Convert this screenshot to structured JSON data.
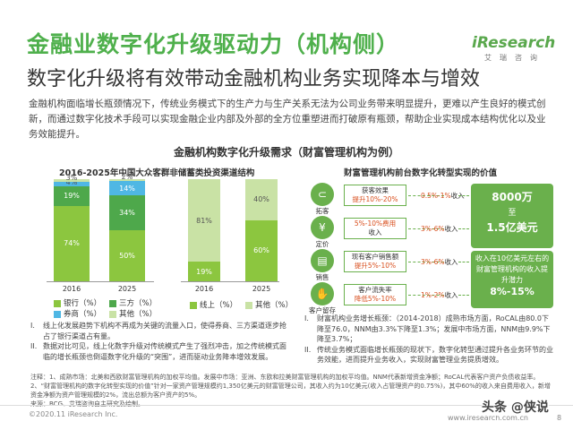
{
  "header": {
    "title": "金融业数字化升级驱动力（机构侧）",
    "subtitle": "数字化升级将有效带动金融机构业务实现降本与增效",
    "logo_main": "iResearch",
    "logo_sub": "艾瑞咨询"
  },
  "intro": "金融机构面临增长瓶颈情况下，传统业务模式下的生产力与生产关系无法为公司业务带来明显提升，更难以产生良好的模式创新，而通过数字化技术手段可以实现金融企业内部及外部的全方位重塑进而打破原有瓶颈，帮助企业实现成本结构优化以及业务效能提升。",
  "section_title": "金融机构数字化升级需求（财富管理机构为例）",
  "chart_data": [
    {
      "type": "bar",
      "stacked": true,
      "title": "2016-2025年中国大众客群非储蓄类投资渠道结构",
      "categories": [
        "2016",
        "2025"
      ],
      "series": [
        {
          "name": "银行（%）",
          "values": [
            74,
            50
          ],
          "labels": [
            "74%",
            "50%"
          ],
          "color": "#8cc63f"
        },
        {
          "name": "三方（%）",
          "values": [
            19,
            34
          ],
          "labels": [
            "19%",
            "34%"
          ],
          "color": "#4ea84b"
        },
        {
          "name": "券商（%）",
          "values": [
            4,
            14
          ],
          "labels": [
            "4%",
            "14%"
          ],
          "color": "#4fb7e4"
        },
        {
          "name": "其他（%）",
          "values": [
            3,
            2
          ],
          "labels": [
            "3%",
            "2%"
          ],
          "color": "#c9e2a5"
        }
      ],
      "ylim": [
        0,
        100
      ]
    },
    {
      "type": "bar",
      "stacked": true,
      "title": "",
      "categories": [
        "2016",
        "2025"
      ],
      "series": [
        {
          "name": "线上（%）",
          "values": [
            19,
            60
          ],
          "labels": [
            "19%",
            "60%"
          ],
          "color": "#8cc63f"
        },
        {
          "name": "其他（%）",
          "values": [
            81,
            40
          ],
          "labels": [
            "81%",
            "40%"
          ],
          "color": "#c9e2a5"
        }
      ],
      "ylim": [
        0,
        100
      ]
    }
  ],
  "value_chain": {
    "title": "财富管理机构前台数字化转型实现的价值",
    "rows": [
      {
        "icon": "magnet-icon",
        "label": "拓客",
        "box": "获客效果\n提升10%-20%",
        "pct": "0.5%-1%收入"
      },
      {
        "icon": "price-tag-icon",
        "label": "定价",
        "box": "5%-10%费用\n收入",
        "pct": "3%-6%收入"
      },
      {
        "icon": "shopping-cart-icon",
        "label": "销售",
        "box": "现有客户销售额\n提升5%-10%",
        "pct": "3%-6%收入"
      },
      {
        "icon": "handshake-icon",
        "label": "客户留存",
        "box": "客户流失率\n降低5%-10%",
        "pct": "1%-2%收入"
      }
    ],
    "summary_top": {
      "amount": "8000万",
      "to": "至",
      "amount2": "1.5亿美元"
    },
    "summary_bottom": {
      "text": "收入在10亿美元左右的财富管理机构的收入提升潜力",
      "pct": "8%-15%"
    }
  },
  "notes_left": [
    {
      "num": "I.",
      "text": "线上化发展趋势下机构不再成为关键的流量入口，使得券商、三方渠道逐步抢占了银行渠道占有量。"
    },
    {
      "num": "II.",
      "text": "数据对比可见，线上化数字升级对传统模式产生了强烈冲击，加之传统模式面临的增长瓶颈也倒逼数字化升级的“突围”，进而驱动业务降本增效发展。"
    }
  ],
  "notes_right": [
    {
      "num": "I.",
      "text": "财富机构业务增长瓶颈：（2014-2018）成熟市场方面，RoCAL由80.0下降至76.0，NNM由3.3%下降至1.3%；发展中市场方面，NNM由9.9%下降至3.7%；"
    },
    {
      "num": "II.",
      "text": "传统业务模式面临增长瓶颈的现状下，数字化转型通过提升各业务环节的业务效能，进而提升业务收入，实现财富管理业务提质增效。"
    }
  ],
  "footnote": [
    "注释：1、成熟市场：北美和西欧财富管理机构的加权平均值。发展中市场：亚洲、东欧和拉美财富管理机构的加权平均值。NNM代表新增资金净额；RoCAL代表客户资产负债收益率。",
    "2、“财富管理机构的数字化转型实现的价值”针对一家资产管理规模约1,350亿美元的财富管理公司，其收入约为10亿美元(收入占管理资产的0.75%)，其中60%的收入来自费用收入，新增资金净额为资产管理规模的2%，流出总额为客户资产的5%。",
    "来源：BCG、艾瑞咨询自主研究及绘制。"
  ],
  "copyright": "©2020.11 iResearch Inc.",
  "site": "www.iresearch.com.cn",
  "watermark": "头条 @侠说",
  "page_num": "8"
}
